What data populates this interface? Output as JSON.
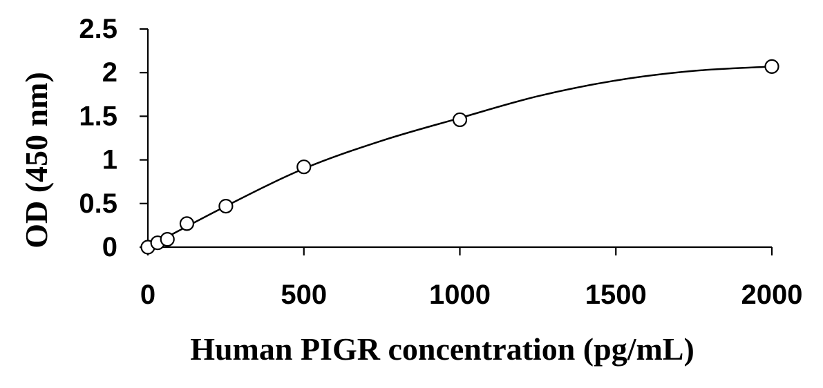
{
  "chart_data": {
    "type": "scatter",
    "xlabel": "Human PIGR concentration (pg/mL)",
    "ylabel": "OD (450 nm)",
    "xlim": [
      0,
      2000
    ],
    "ylim": [
      0,
      2.5
    ],
    "x_ticks": [
      0,
      500,
      1000,
      1500,
      2000
    ],
    "y_ticks": [
      0,
      0.5,
      1,
      1.5,
      2,
      2.5
    ],
    "x_tick_labels": [
      "0",
      "500",
      "1000",
      "1500",
      "2000"
    ],
    "y_tick_labels": [
      "0",
      "0.5",
      "1",
      "1.5",
      "2",
      "2.5"
    ],
    "grid": false,
    "legend": "none",
    "series": [
      {
        "x": [
          0,
          31.25,
          62.5,
          125,
          250,
          500,
          1000,
          2000
        ],
        "values": [
          0.0,
          0.05,
          0.09,
          0.27,
          0.47,
          0.92,
          1.46,
          2.07
        ],
        "marker": "open-circle",
        "color": "#000000"
      }
    ],
    "fit_curve": {
      "x": [
        0,
        250,
        500,
        750,
        1000,
        1250,
        1500,
        1750,
        2000
      ],
      "values": [
        0.0,
        0.47,
        0.9,
        1.22,
        1.48,
        1.73,
        1.91,
        2.02,
        2.07
      ],
      "color": "#000000"
    }
  }
}
